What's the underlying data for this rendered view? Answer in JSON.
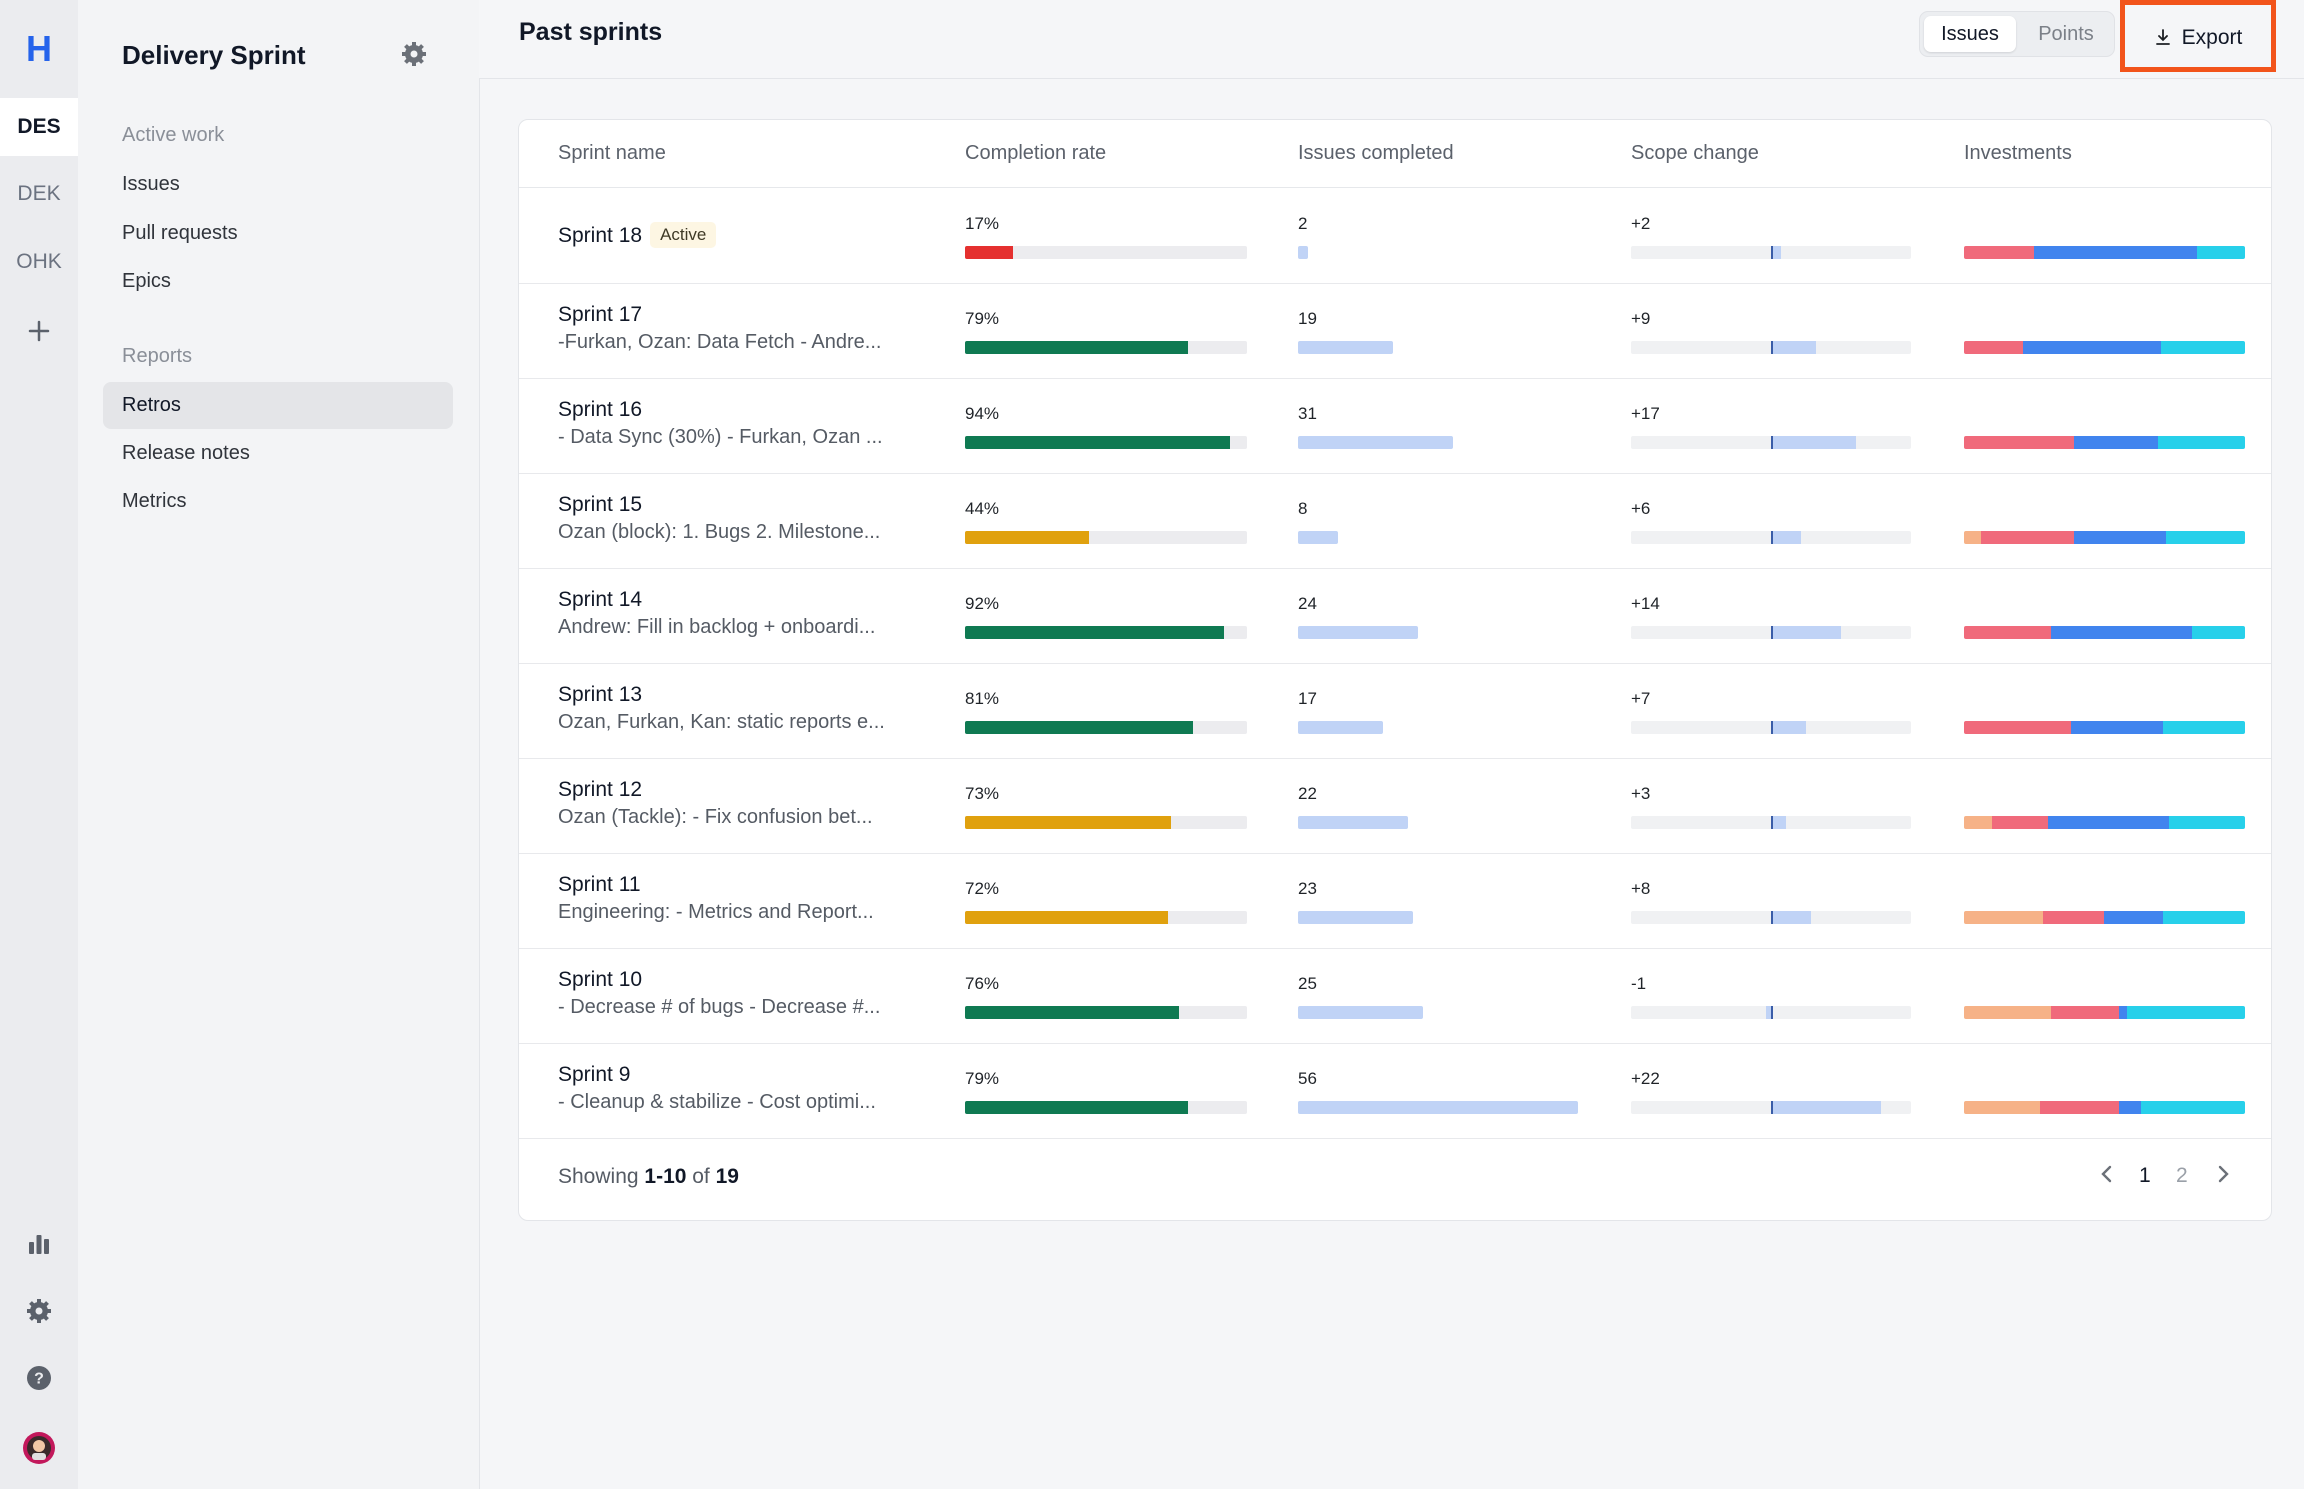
{
  "rail": {
    "logo": "H",
    "workspaces": [
      "DES",
      "DEK",
      "OHK"
    ],
    "add_icon": "plus-icon",
    "bottom_icons": [
      "bar-chart-icon",
      "gear-icon",
      "help-icon",
      "avatar"
    ]
  },
  "nav": {
    "title": "Delivery Sprint",
    "section_active": "Active work",
    "active_items": [
      "Issues",
      "Pull requests",
      "Epics"
    ],
    "section_reports": "Reports",
    "report_items": [
      "Retros",
      "Release notes",
      "Metrics"
    ],
    "selected": "Retros"
  },
  "header": {
    "title": "Past sprints",
    "toggle": {
      "on": "Issues",
      "off": "Points"
    },
    "export_label": "Export"
  },
  "colors": {
    "green": "#0f7a52",
    "amber": "#e0a10e",
    "red": "#e5302f",
    "blue_light": "#c0d3f6",
    "inv_orange": "#f6b287",
    "inv_red": "#f06a7b",
    "inv_blue": "#4184ee",
    "inv_cyan": "#27d0ea",
    "export_highlight": "#f2541b"
  },
  "table": {
    "columns": [
      "Sprint name",
      "Completion rate",
      "Issues completed",
      "Scope change",
      "Investments"
    ],
    "rows": [
      {
        "name": "Sprint 18",
        "badge": "Active",
        "sub": "",
        "completion": "17%",
        "completion_pct": 17,
        "completion_color": "red",
        "issues": "2",
        "issues_n": 2,
        "scope": "+2",
        "scope_n": 2,
        "inv": [
          0,
          25,
          58,
          17
        ]
      },
      {
        "name": "Sprint 17",
        "badge": "",
        "sub": "-Furkan, Ozan: Data Fetch - Andre...",
        "completion": "79%",
        "completion_pct": 79,
        "completion_color": "green",
        "issues": "19",
        "issues_n": 19,
        "scope": "+9",
        "scope_n": 9,
        "inv": [
          0,
          21,
          49,
          30
        ]
      },
      {
        "name": "Sprint 16",
        "badge": "",
        "sub": "- Data Sync (30%) - Furkan, Ozan ...",
        "completion": "94%",
        "completion_pct": 94,
        "completion_color": "green",
        "issues": "31",
        "issues_n": 31,
        "scope": "+17",
        "scope_n": 17,
        "inv": [
          0,
          39,
          30,
          31
        ]
      },
      {
        "name": "Sprint 15",
        "badge": "",
        "sub": "Ozan (block): 1. Bugs 2. Milestone...",
        "completion": "44%",
        "completion_pct": 44,
        "completion_color": "amber",
        "issues": "8",
        "issues_n": 8,
        "scope": "+6",
        "scope_n": 6,
        "inv": [
          6,
          33,
          33,
          28
        ]
      },
      {
        "name": "Sprint 14",
        "badge": "",
        "sub": "Andrew: Fill in backlog + onboardi...",
        "completion": "92%",
        "completion_pct": 92,
        "completion_color": "green",
        "issues": "24",
        "issues_n": 24,
        "scope": "+14",
        "scope_n": 14,
        "inv": [
          0,
          31,
          50,
          19
        ]
      },
      {
        "name": "Sprint 13",
        "badge": "",
        "sub": "Ozan, Furkan, Kan: static reports e...",
        "completion": "81%",
        "completion_pct": 81,
        "completion_color": "green",
        "issues": "17",
        "issues_n": 17,
        "scope": "+7",
        "scope_n": 7,
        "inv": [
          0,
          38,
          33,
          29
        ]
      },
      {
        "name": "Sprint 12",
        "badge": "",
        "sub": "Ozan (Tackle): - Fix confusion bet...",
        "completion": "73%",
        "completion_pct": 73,
        "completion_color": "amber",
        "issues": "22",
        "issues_n": 22,
        "scope": "+3",
        "scope_n": 3,
        "inv": [
          10,
          20,
          43,
          27
        ]
      },
      {
        "name": "Sprint 11",
        "badge": "",
        "sub": "Engineering: - Metrics and Report...",
        "completion": "72%",
        "completion_pct": 72,
        "completion_color": "amber",
        "issues": "23",
        "issues_n": 23,
        "scope": "+8",
        "scope_n": 8,
        "inv": [
          28,
          22,
          21,
          29
        ]
      },
      {
        "name": "Sprint 10",
        "badge": "",
        "sub": "- Decrease # of bugs - Decrease #...",
        "completion": "76%",
        "completion_pct": 76,
        "completion_color": "green",
        "issues": "25",
        "issues_n": 25,
        "scope": "-1",
        "scope_n": -1,
        "inv": [
          31,
          24,
          3,
          42
        ]
      },
      {
        "name": "Sprint 9",
        "badge": "",
        "sub": "- Cleanup & stabilize - Cost optimi...",
        "completion": "79%",
        "completion_pct": 79,
        "completion_color": "green",
        "issues": "56",
        "issues_n": 56,
        "scope": "+22",
        "scope_n": 22,
        "inv": [
          27,
          28,
          8,
          37
        ]
      }
    ]
  },
  "footer": {
    "prefix": "Showing ",
    "range": "1-10",
    "of": " of ",
    "total": "19",
    "pages": [
      "1",
      "2"
    ],
    "current_page": "1"
  }
}
